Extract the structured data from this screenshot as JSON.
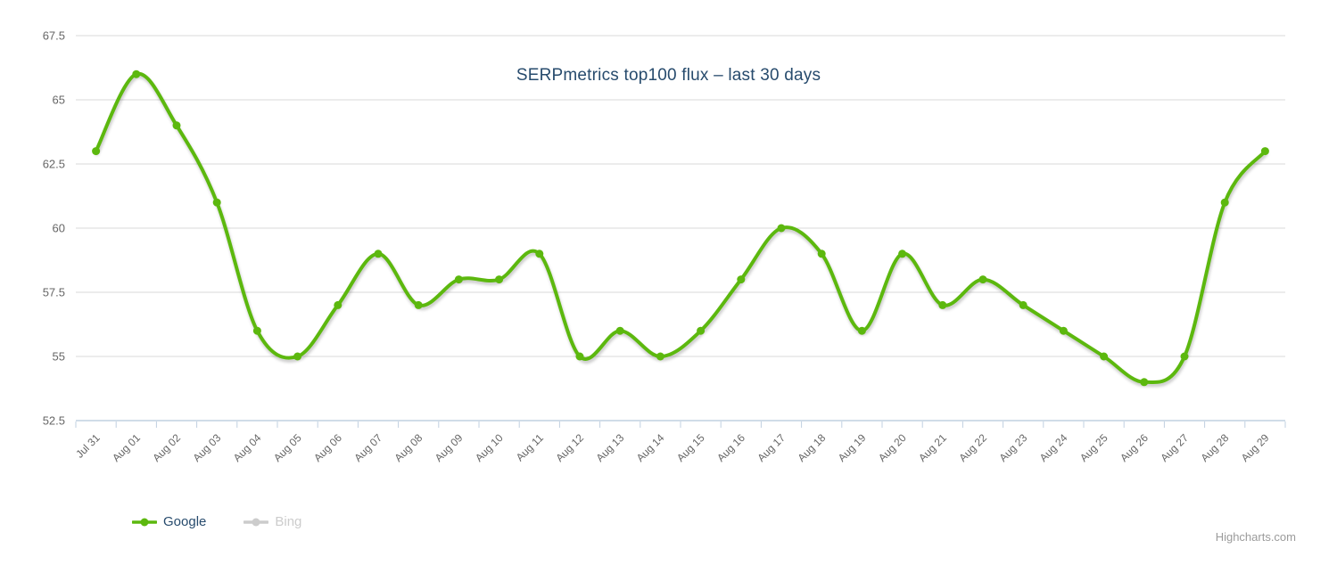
{
  "chart_data": {
    "type": "line",
    "title": "SERPmetrics top100 flux – last 30 days",
    "xlabel": "",
    "ylabel": "",
    "categories": [
      "Jul 31",
      "Aug 01",
      "Aug 02",
      "Aug 03",
      "Aug 04",
      "Aug 05",
      "Aug 06",
      "Aug 07",
      "Aug 08",
      "Aug 09",
      "Aug 10",
      "Aug 11",
      "Aug 12",
      "Aug 13",
      "Aug 14",
      "Aug 15",
      "Aug 16",
      "Aug 17",
      "Aug 18",
      "Aug 19",
      "Aug 20",
      "Aug 21",
      "Aug 22",
      "Aug 23",
      "Aug 24",
      "Aug 25",
      "Aug 26",
      "Aug 27",
      "Aug 28",
      "Aug 29"
    ],
    "series": [
      {
        "name": "Google",
        "color": "#5cb80e",
        "visible": true,
        "values": [
          63,
          66,
          64,
          61,
          56,
          55,
          57,
          59,
          57,
          58,
          58,
          59,
          55,
          56,
          55,
          56,
          58,
          60,
          59,
          56,
          59,
          57,
          58,
          57,
          56,
          55,
          54,
          55,
          61,
          63
        ]
      },
      {
        "name": "Bing",
        "color": "#cccccc",
        "visible": false,
        "values": []
      }
    ],
    "ylim": [
      52.5,
      67.5
    ],
    "yticks": [
      52.5,
      55,
      57.5,
      60,
      62.5,
      65,
      67.5
    ],
    "grid": true,
    "legend_position": "bottom-left"
  },
  "credits": "Highcharts.com",
  "theme": {
    "title_color": "#274b6d",
    "axis_label_color": "#666666",
    "grid_color": "#d8d8d8",
    "axis_line_color": "#c0d0e0",
    "hidden_legend_color": "#cccccc",
    "credits_color": "#9b9b9b",
    "background": "#ffffff"
  }
}
